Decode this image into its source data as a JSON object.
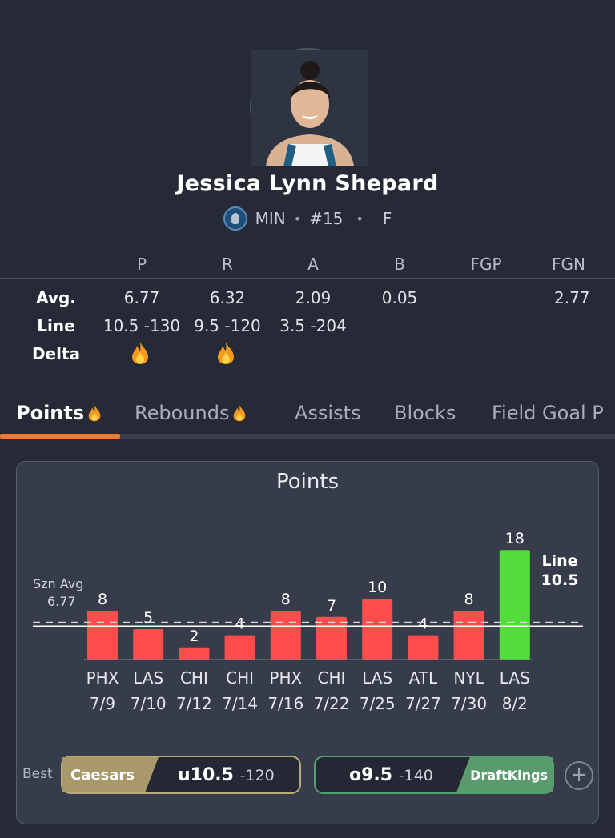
{
  "player": {
    "name": "Jessica Lynn Shepard",
    "team": "MIN",
    "number": "#15",
    "position": "F",
    "sep": "•"
  },
  "stats": {
    "headers": [
      "P",
      "R",
      "A",
      "B",
      "FGP",
      "FGN"
    ],
    "rows": {
      "avg_label": "Avg.",
      "line_label": "Line",
      "delta_label": "Delta",
      "avg": [
        "6.77",
        "6.32",
        "2.09",
        "0.05",
        "",
        "2.77"
      ],
      "line": [
        "10.5 -130",
        "9.5 -120",
        "3.5 -204"
      ],
      "delta_fire": [
        true,
        true,
        false,
        false,
        false,
        false
      ]
    }
  },
  "tabs": [
    "Points",
    "Rebounds",
    "Assists",
    "Blocks",
    "Field Goal P"
  ],
  "tabs_fire": [
    true,
    true,
    false,
    false,
    false
  ],
  "active_tab": 0,
  "colors": {
    "accent": "#f07a34",
    "bar_under": "#ff4d4d",
    "bar_over": "#52dd3a",
    "caesars": "#a8986a",
    "draftkings": "#5a9b6d"
  },
  "chart_data": {
    "type": "bar",
    "title": "Points",
    "categories": [
      "PHX\n7/9",
      "LAS\n7/10",
      "CHI\n7/12",
      "CHI\n7/14",
      "PHX\n7/16",
      "CHI\n7/22",
      "LAS\n7/25",
      "ATL\n7/27",
      "NYL\n7/30",
      "LAS\n8/2"
    ],
    "teams": [
      "PHX",
      "LAS",
      "CHI",
      "CHI",
      "PHX",
      "CHI",
      "LAS",
      "ATL",
      "NYL",
      "LAS"
    ],
    "dates": [
      "7/9",
      "7/10",
      "7/12",
      "7/14",
      "7/16",
      "7/22",
      "7/25",
      "7/27",
      "7/30",
      "8/2"
    ],
    "values": [
      8,
      5,
      2,
      4,
      8,
      7,
      10,
      4,
      8,
      18
    ],
    "line_value": 10.5,
    "line_label": "Line",
    "line_value_label": "10.5",
    "season_avg": 6.77,
    "season_avg_label": "Szn Avg",
    "season_avg_value_label": "6.77",
    "ylim": [
      0,
      18
    ]
  },
  "bets": {
    "best_label": "Best",
    "under": {
      "book": "Caesars",
      "pick": "u10.5",
      "price": "-120"
    },
    "over": {
      "book": "DraftKings",
      "pick": "o9.5",
      "price": "-140"
    },
    "plus": "+"
  }
}
